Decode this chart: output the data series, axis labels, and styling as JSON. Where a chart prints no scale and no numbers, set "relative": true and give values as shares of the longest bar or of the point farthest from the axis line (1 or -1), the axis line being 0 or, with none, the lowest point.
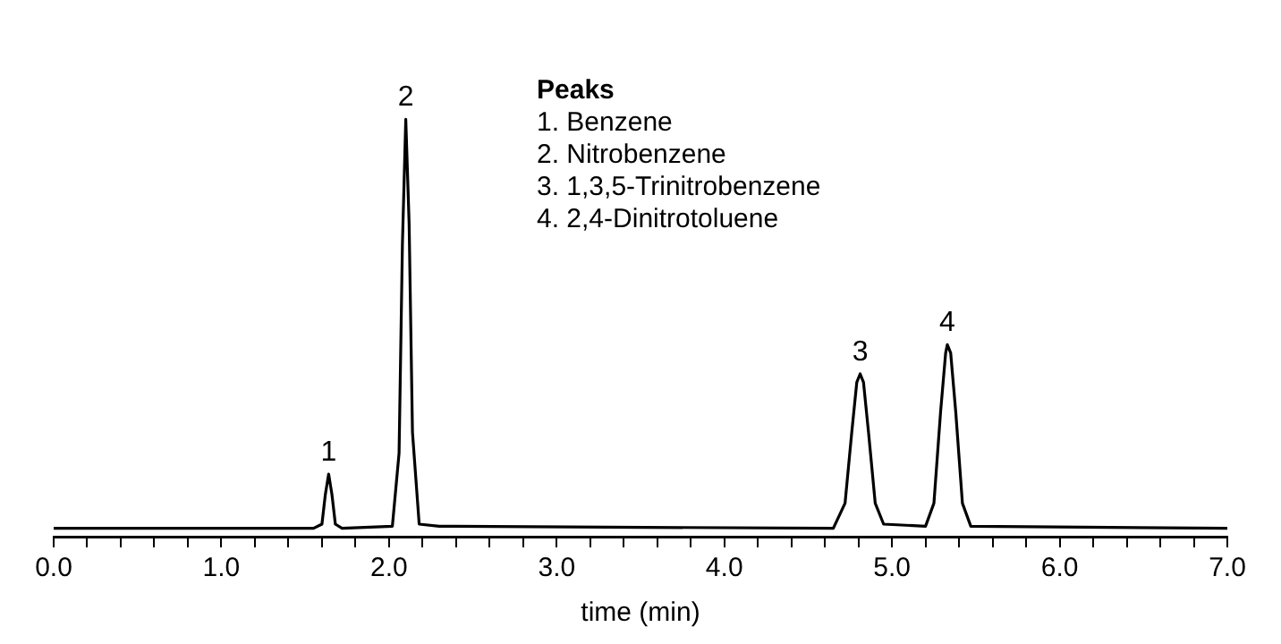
{
  "chart_data": {
    "type": "line",
    "relative": true,
    "xlabel": "time (min)",
    "color": "#000000",
    "marker": "none",
    "line_style": "solid",
    "grid": false,
    "legend": false,
    "tick_labels": "x",
    "x": [
      0,
      1.55,
      1.6,
      1.62,
      1.64,
      1.66,
      1.68,
      1.72,
      2.02,
      2.06,
      2.08,
      2.1,
      2.12,
      2.14,
      2.18,
      2.3,
      4.65,
      4.72,
      4.76,
      4.79,
      4.81,
      4.83,
      4.86,
      4.9,
      4.95,
      5.2,
      5.25,
      5.29,
      5.32,
      5.33,
      5.35,
      5.38,
      5.42,
      5.47,
      7
    ],
    "values": [
      0.02,
      0.02,
      0.03,
      0.1,
      0.15,
      0.1,
      0.03,
      0.02,
      0.025,
      0.2,
      0.7,
      1,
      0.75,
      0.25,
      0.03,
      0.025,
      0.02,
      0.08,
      0.25,
      0.37,
      0.39,
      0.37,
      0.25,
      0.08,
      0.03,
      0.025,
      0.08,
      0.3,
      0.44,
      0.46,
      0.44,
      0.3,
      0.08,
      0.025,
      0.02
    ],
    "xlim": [
      0,
      7
    ],
    "xticks": [
      {
        "value": 0,
        "label": "0.0"
      },
      {
        "value": 0.2,
        "label": null
      },
      {
        "value": 0.4,
        "label": null
      },
      {
        "value": 0.6,
        "label": null
      },
      {
        "value": 0.8,
        "label": null
      },
      {
        "value": 1,
        "label": "1.0"
      },
      {
        "value": 1.2,
        "label": null
      },
      {
        "value": 1.4,
        "label": null
      },
      {
        "value": 1.6,
        "label": null
      },
      {
        "value": 1.8,
        "label": null
      },
      {
        "value": 2,
        "label": "2.0"
      },
      {
        "value": 2.2,
        "label": null
      },
      {
        "value": 2.4,
        "label": null
      },
      {
        "value": 2.6,
        "label": null
      },
      {
        "value": 2.8,
        "label": null
      },
      {
        "value": 3,
        "label": "3.0"
      },
      {
        "value": 3.2,
        "label": null
      },
      {
        "value": 3.4,
        "label": null
      },
      {
        "value": 3.6,
        "label": null
      },
      {
        "value": 3.8,
        "label": null
      },
      {
        "value": 4,
        "label": "4.0"
      },
      {
        "value": 4.2,
        "label": null
      },
      {
        "value": 4.4,
        "label": null
      },
      {
        "value": 4.6,
        "label": null
      },
      {
        "value": 4.8,
        "label": null
      },
      {
        "value": 5,
        "label": "5.0"
      },
      {
        "value": 5.2,
        "label": null
      },
      {
        "value": 5.4,
        "label": null
      },
      {
        "value": 5.6,
        "label": null
      },
      {
        "value": 5.8,
        "label": null
      },
      {
        "value": 6,
        "label": "6.0"
      },
      {
        "value": 6.2,
        "label": null
      },
      {
        "value": 6.4,
        "label": null
      },
      {
        "value": 6.6,
        "label": null
      },
      {
        "value": 6.8,
        "label": null
      },
      {
        "value": 7,
        "label": "7.0"
      }
    ],
    "annotations": [
      {
        "text": "1",
        "x": 1.64,
        "y": 0.15
      },
      {
        "text": "2",
        "x": 2.1,
        "y": 1
      },
      {
        "text": "3",
        "x": 4.81,
        "y": 0.39
      },
      {
        "text": "4",
        "x": 5.33,
        "y": 0.46
      },
      "Peaks",
      "1. Benzene",
      "2. Nitrobenzene",
      "3. 1,3,5-Trinitrobenzene",
      "4. 2,4-Dinitrotoluene"
    ]
  }
}
